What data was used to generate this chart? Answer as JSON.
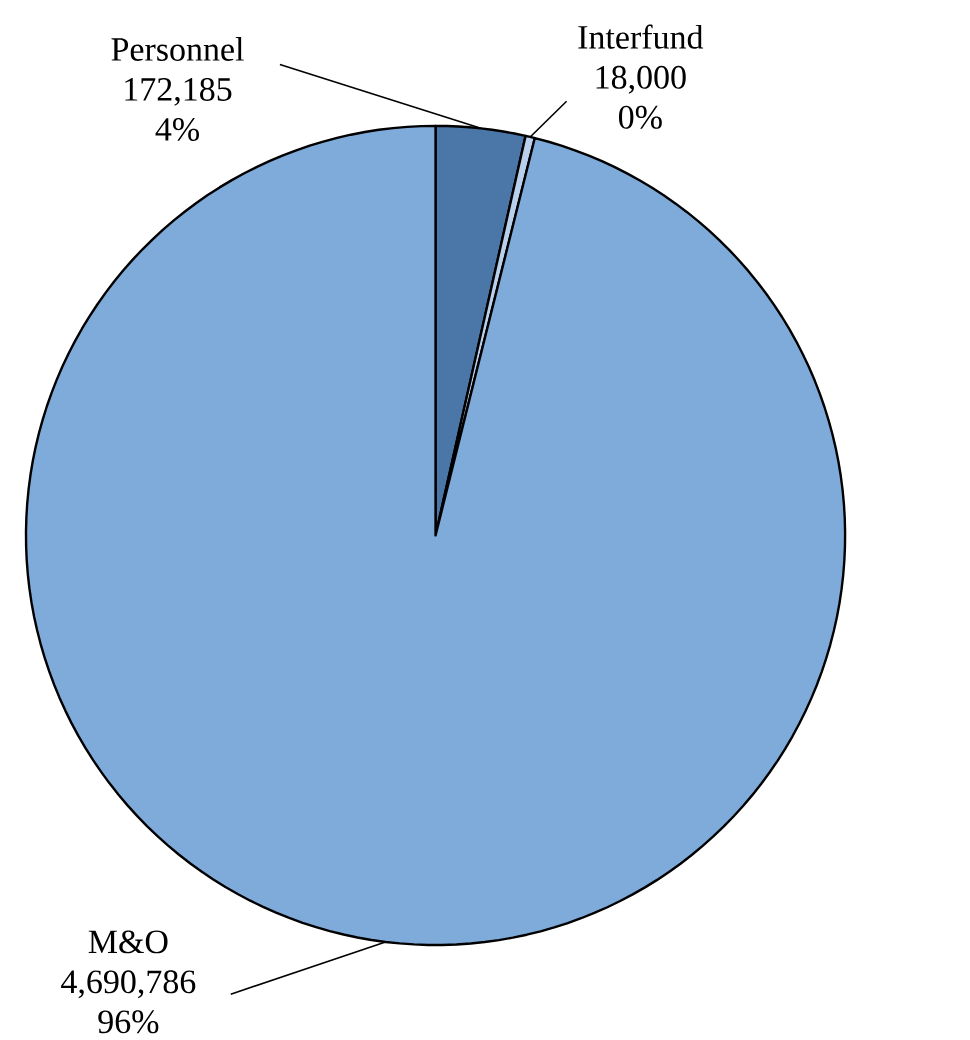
{
  "chart_data": {
    "type": "pie",
    "categories": [
      "Personnel",
      "Interfund",
      "M&O"
    ],
    "values": [
      172185,
      18000,
      4690786
    ],
    "colors": [
      "#4a77a7",
      "#b9d0ec",
      "#7fabdb"
    ],
    "value_labels": [
      "172,185",
      "18,000",
      "4,690,786"
    ],
    "annotations": [
      "4%",
      "0%",
      "96%"
    ]
  }
}
